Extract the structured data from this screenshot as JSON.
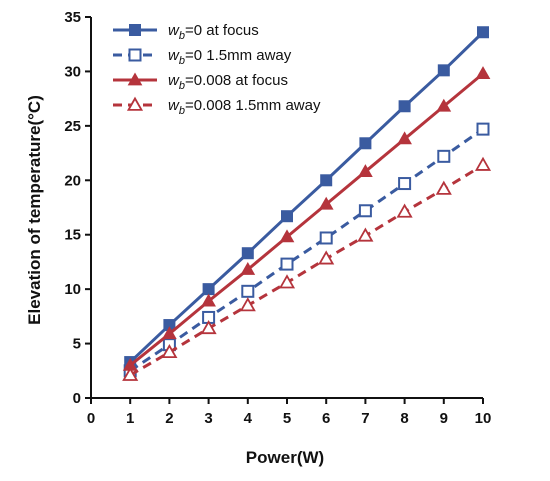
{
  "chart_data": {
    "type": "line",
    "title": "",
    "xlabel": "Power(W)",
    "ylabel": "Elevation of temperature(°C)",
    "xlim": [
      0,
      10
    ],
    "ylim": [
      0,
      35
    ],
    "x_ticks": [
      0,
      1,
      2,
      3,
      4,
      5,
      6,
      7,
      8,
      9,
      10
    ],
    "y_ticks": [
      0,
      5,
      10,
      15,
      20,
      25,
      30,
      35
    ],
    "grid": false,
    "legend_position": "top-left",
    "x": [
      1,
      2,
      3,
      4,
      5,
      6,
      7,
      8,
      9,
      10
    ],
    "series": [
      {
        "legend_subscript": "b",
        "legend_rest": "=0 at focus",
        "color": "#3a5ba0",
        "marker": "square-filled",
        "line": "solid",
        "values": [
          3.3,
          6.7,
          10.0,
          13.3,
          16.7,
          20.0,
          23.4,
          26.8,
          30.1,
          33.6
        ]
      },
      {
        "legend_subscript": "b",
        "legend_rest": "=0 1.5mm away",
        "color": "#3a5ba0",
        "marker": "square-open",
        "line": "dashed",
        "values": [
          2.5,
          4.9,
          7.4,
          9.8,
          12.3,
          14.7,
          17.2,
          19.7,
          22.2,
          24.7
        ]
      },
      {
        "legend_subscript": "b",
        "legend_rest": "=0.008 at focus",
        "color": "#b5343c",
        "marker": "triangle-filled",
        "line": "solid",
        "values": [
          3.0,
          5.9,
          8.9,
          11.8,
          14.8,
          17.8,
          20.8,
          23.8,
          26.8,
          29.8
        ]
      },
      {
        "legend_subscript": "b",
        "legend_rest": "=0.008 1.5mm away",
        "color": "#b5343c",
        "marker": "triangle-open",
        "line": "dashed",
        "values": [
          2.1,
          4.2,
          6.4,
          8.5,
          10.6,
          12.8,
          14.9,
          17.1,
          19.2,
          21.4
        ]
      }
    ],
    "legend_prefix": "w"
  }
}
